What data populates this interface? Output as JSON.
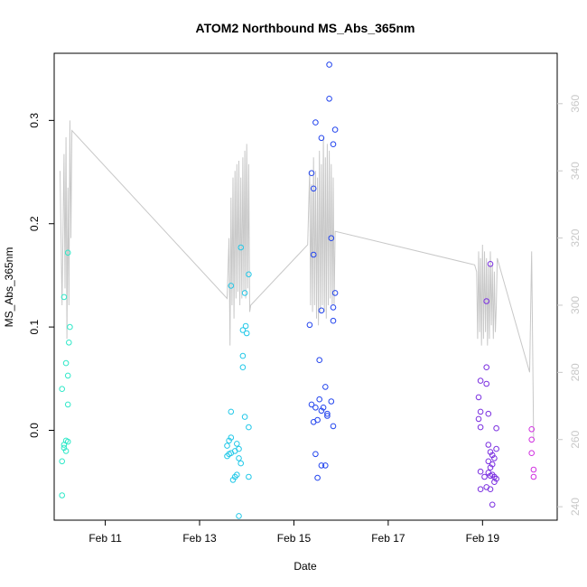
{
  "chart_data": {
    "type": "scatter",
    "title": "ATOM2 Northbound MS_Abs_365nm",
    "xlabel": "Date",
    "ylabel": "MS_Abs_365nm",
    "x_domain": [
      "2016-02-09T22:00",
      "2016-02-20T14:00"
    ],
    "ylim": [
      -0.087,
      0.365
    ],
    "y2lim": [
      236,
      375
    ],
    "x_ticks": [
      {
        "date": "2016-02-11",
        "label": "Feb 11"
      },
      {
        "date": "2016-02-13",
        "label": "Feb 13"
      },
      {
        "date": "2016-02-15",
        "label": "Feb 15"
      },
      {
        "date": "2016-02-17",
        "label": "Feb 17"
      },
      {
        "date": "2016-02-19",
        "label": "Feb 19"
      }
    ],
    "y_ticks": [
      {
        "value": 0.0,
        "label": "0.0"
      },
      {
        "value": 0.1,
        "label": "0.1"
      },
      {
        "value": 0.2,
        "label": "0.2"
      },
      {
        "value": 0.3,
        "label": "0.3"
      }
    ],
    "y2_ticks": [
      {
        "value": 240,
        "label": "240"
      },
      {
        "value": 260,
        "label": "260"
      },
      {
        "value": 280,
        "label": "280"
      },
      {
        "value": 300,
        "label": "300"
      },
      {
        "value": 320,
        "label": "320"
      },
      {
        "value": 340,
        "label": "340"
      },
      {
        "value": 360,
        "label": "360"
      }
    ],
    "colors": {
      "line": "#c8c8c8",
      "cluster1": "#2ee8c8",
      "cluster2": "#22c8e8",
      "cluster3": "#2244ee",
      "cluster4": "#7a2ee0",
      "cluster5": "#d030e0"
    },
    "points": [
      {
        "x": "2016-02-10T03:00",
        "y": 0.129,
        "color": "#2ee8c8"
      },
      {
        "x": "2016-02-10T05:00",
        "y": 0.172,
        "color": "#2ee8c8"
      },
      {
        "x": "2016-02-10T06:00",
        "y": 0.1,
        "color": "#2ee8c8"
      },
      {
        "x": "2016-02-10T05:30",
        "y": 0.085,
        "color": "#2ee8c8"
      },
      {
        "x": "2016-02-10T04:00",
        "y": 0.065,
        "color": "#2ee8c8"
      },
      {
        "x": "2016-02-10T05:00",
        "y": 0.053,
        "color": "#2ee8c8"
      },
      {
        "x": "2016-02-10T02:00",
        "y": 0.04,
        "color": "#2ee8c8"
      },
      {
        "x": "2016-02-10T05:00",
        "y": 0.025,
        "color": "#2ee8c8"
      },
      {
        "x": "2016-02-10T04:00",
        "y": -0.01,
        "color": "#2ee8c8"
      },
      {
        "x": "2016-02-10T05:00",
        "y": -0.011,
        "color": "#2ee8c8"
      },
      {
        "x": "2016-02-10T03:00",
        "y": -0.014,
        "color": "#2ee8c8"
      },
      {
        "x": "2016-02-10T03:00",
        "y": -0.017,
        "color": "#2ee8c8"
      },
      {
        "x": "2016-02-10T04:00",
        "y": -0.02,
        "color": "#2ee8c8"
      },
      {
        "x": "2016-02-10T02:00",
        "y": -0.03,
        "color": "#2ee8c8"
      },
      {
        "x": "2016-02-10T02:00",
        "y": -0.063,
        "color": "#2ee8c8"
      },
      {
        "x": "2016-02-13T16:00",
        "y": 0.14,
        "color": "#22c8e8"
      },
      {
        "x": "2016-02-13T21:00",
        "y": 0.177,
        "color": "#22c8e8"
      },
      {
        "x": "2016-02-14T01:00",
        "y": 0.151,
        "color": "#22c8e8"
      },
      {
        "x": "2016-02-13T23:00",
        "y": 0.133,
        "color": "#22c8e8"
      },
      {
        "x": "2016-02-13T23:30",
        "y": 0.101,
        "color": "#22c8e8"
      },
      {
        "x": "2016-02-13T22:00",
        "y": 0.097,
        "color": "#22c8e8"
      },
      {
        "x": "2016-02-14T00:00",
        "y": 0.094,
        "color": "#22c8e8"
      },
      {
        "x": "2016-02-13T22:00",
        "y": 0.072,
        "color": "#22c8e8"
      },
      {
        "x": "2016-02-13T22:00",
        "y": 0.061,
        "color": "#22c8e8"
      },
      {
        "x": "2016-02-13T16:00",
        "y": 0.018,
        "color": "#22c8e8"
      },
      {
        "x": "2016-02-13T23:00",
        "y": 0.013,
        "color": "#22c8e8"
      },
      {
        "x": "2016-02-14T01:00",
        "y": 0.003,
        "color": "#22c8e8"
      },
      {
        "x": "2016-02-13T16:00",
        "y": -0.007,
        "color": "#22c8e8"
      },
      {
        "x": "2016-02-13T15:00",
        "y": -0.01,
        "color": "#22c8e8"
      },
      {
        "x": "2016-02-13T14:00",
        "y": -0.015,
        "color": "#22c8e8"
      },
      {
        "x": "2016-02-13T19:00",
        "y": -0.013,
        "color": "#22c8e8"
      },
      {
        "x": "2016-02-13T20:00",
        "y": -0.018,
        "color": "#22c8e8"
      },
      {
        "x": "2016-02-13T18:00",
        "y": -0.02,
        "color": "#22c8e8"
      },
      {
        "x": "2016-02-13T16:00",
        "y": -0.022,
        "color": "#22c8e8"
      },
      {
        "x": "2016-02-13T14:00",
        "y": -0.025,
        "color": "#22c8e8"
      },
      {
        "x": "2016-02-13T15:00",
        "y": -0.023,
        "color": "#22c8e8"
      },
      {
        "x": "2016-02-13T20:00",
        "y": -0.027,
        "color": "#22c8e8"
      },
      {
        "x": "2016-02-13T21:00",
        "y": -0.032,
        "color": "#22c8e8"
      },
      {
        "x": "2016-02-13T19:00",
        "y": -0.043,
        "color": "#22c8e8"
      },
      {
        "x": "2016-02-13T18:00",
        "y": -0.045,
        "color": "#22c8e8"
      },
      {
        "x": "2016-02-14T01:00",
        "y": -0.045,
        "color": "#22c8e8"
      },
      {
        "x": "2016-02-13T17:00",
        "y": -0.048,
        "color": "#22c8e8"
      },
      {
        "x": "2016-02-13T20:00",
        "y": -0.083,
        "color": "#22c8e8"
      },
      {
        "x": "2016-02-15T18:00",
        "y": 0.354,
        "color": "#2244ee"
      },
      {
        "x": "2016-02-15T18:00",
        "y": 0.321,
        "color": "#2244ee"
      },
      {
        "x": "2016-02-15T11:00",
        "y": 0.298,
        "color": "#2244ee"
      },
      {
        "x": "2016-02-15T21:00",
        "y": 0.291,
        "color": "#2244ee"
      },
      {
        "x": "2016-02-15T14:00",
        "y": 0.283,
        "color": "#2244ee"
      },
      {
        "x": "2016-02-15T20:00",
        "y": 0.277,
        "color": "#2244ee"
      },
      {
        "x": "2016-02-15T09:00",
        "y": 0.249,
        "color": "#2244ee"
      },
      {
        "x": "2016-02-15T10:00",
        "y": 0.234,
        "color": "#2244ee"
      },
      {
        "x": "2016-02-15T19:00",
        "y": 0.186,
        "color": "#2244ee"
      },
      {
        "x": "2016-02-15T10:00",
        "y": 0.17,
        "color": "#2244ee"
      },
      {
        "x": "2016-02-15T21:00",
        "y": 0.133,
        "color": "#2244ee"
      },
      {
        "x": "2016-02-15T20:00",
        "y": 0.119,
        "color": "#2244ee"
      },
      {
        "x": "2016-02-15T14:00",
        "y": 0.116,
        "color": "#2244ee"
      },
      {
        "x": "2016-02-15T20:00",
        "y": 0.106,
        "color": "#2244ee"
      },
      {
        "x": "2016-02-15T08:00",
        "y": 0.102,
        "color": "#2244ee"
      },
      {
        "x": "2016-02-15T13:00",
        "y": 0.068,
        "color": "#2244ee"
      },
      {
        "x": "2016-02-15T16:00",
        "y": 0.042,
        "color": "#2244ee"
      },
      {
        "x": "2016-02-15T13:00",
        "y": 0.03,
        "color": "#2244ee"
      },
      {
        "x": "2016-02-15T19:00",
        "y": 0.028,
        "color": "#2244ee"
      },
      {
        "x": "2016-02-15T09:00",
        "y": 0.025,
        "color": "#2244ee"
      },
      {
        "x": "2016-02-15T11:00",
        "y": 0.022,
        "color": "#2244ee"
      },
      {
        "x": "2016-02-15T15:00",
        "y": 0.022,
        "color": "#2244ee"
      },
      {
        "x": "2016-02-15T14:00",
        "y": 0.019,
        "color": "#2244ee"
      },
      {
        "x": "2016-02-15T17:00",
        "y": 0.016,
        "color": "#2244ee"
      },
      {
        "x": "2016-02-15T17:00",
        "y": 0.014,
        "color": "#2244ee"
      },
      {
        "x": "2016-02-15T12:00",
        "y": 0.01,
        "color": "#2244ee"
      },
      {
        "x": "2016-02-15T10:00",
        "y": 0.008,
        "color": "#2244ee"
      },
      {
        "x": "2016-02-15T20:00",
        "y": 0.004,
        "color": "#2244ee"
      },
      {
        "x": "2016-02-15T11:00",
        "y": -0.023,
        "color": "#2244ee"
      },
      {
        "x": "2016-02-15T14:00",
        "y": -0.034,
        "color": "#2244ee"
      },
      {
        "x": "2016-02-15T16:00",
        "y": -0.034,
        "color": "#2244ee"
      },
      {
        "x": "2016-02-15T12:00",
        "y": -0.046,
        "color": "#2244ee"
      },
      {
        "x": "2016-02-19T04:00",
        "y": 0.161,
        "color": "#7a2ee0"
      },
      {
        "x": "2016-02-19T02:00",
        "y": 0.125,
        "color": "#7a2ee0"
      },
      {
        "x": "2016-02-19T02:00",
        "y": 0.061,
        "color": "#7a2ee0"
      },
      {
        "x": "2016-02-18T23:00",
        "y": 0.048,
        "color": "#7a2ee0"
      },
      {
        "x": "2016-02-19T02:00",
        "y": 0.045,
        "color": "#7a2ee0"
      },
      {
        "x": "2016-02-18T22:00",
        "y": 0.032,
        "color": "#7a2ee0"
      },
      {
        "x": "2016-02-18T23:00",
        "y": 0.018,
        "color": "#7a2ee0"
      },
      {
        "x": "2016-02-19T03:00",
        "y": 0.016,
        "color": "#7a2ee0"
      },
      {
        "x": "2016-02-18T22:00",
        "y": 0.011,
        "color": "#7a2ee0"
      },
      {
        "x": "2016-02-18T23:00",
        "y": 0.003,
        "color": "#7a2ee0"
      },
      {
        "x": "2016-02-19T07:00",
        "y": 0.002,
        "color": "#7a2ee0"
      },
      {
        "x": "2016-02-19T03:00",
        "y": -0.014,
        "color": "#7a2ee0"
      },
      {
        "x": "2016-02-19T07:00",
        "y": -0.018,
        "color": "#7a2ee0"
      },
      {
        "x": "2016-02-19T04:00",
        "y": -0.021,
        "color": "#7a2ee0"
      },
      {
        "x": "2016-02-19T05:00",
        "y": -0.024,
        "color": "#7a2ee0"
      },
      {
        "x": "2016-02-19T06:00",
        "y": -0.027,
        "color": "#7a2ee0"
      },
      {
        "x": "2016-02-19T03:00",
        "y": -0.03,
        "color": "#7a2ee0"
      },
      {
        "x": "2016-02-19T05:00",
        "y": -0.033,
        "color": "#7a2ee0"
      },
      {
        "x": "2016-02-19T04:00",
        "y": -0.036,
        "color": "#7a2ee0"
      },
      {
        "x": "2016-02-18T23:00",
        "y": -0.04,
        "color": "#7a2ee0"
      },
      {
        "x": "2016-02-19T03:00",
        "y": -0.041,
        "color": "#7a2ee0"
      },
      {
        "x": "2016-02-19T05:00",
        "y": -0.043,
        "color": "#7a2ee0"
      },
      {
        "x": "2016-02-19T04:00",
        "y": -0.044,
        "color": "#7a2ee0"
      },
      {
        "x": "2016-02-19T01:00",
        "y": -0.045,
        "color": "#7a2ee0"
      },
      {
        "x": "2016-02-19T06:00",
        "y": -0.045,
        "color": "#7a2ee0"
      },
      {
        "x": "2016-02-19T07:00",
        "y": -0.047,
        "color": "#7a2ee0"
      },
      {
        "x": "2016-02-19T06:00",
        "y": -0.05,
        "color": "#7a2ee0"
      },
      {
        "x": "2016-02-19T02:00",
        "y": -0.055,
        "color": "#7a2ee0"
      },
      {
        "x": "2016-02-18T23:00",
        "y": -0.057,
        "color": "#7a2ee0"
      },
      {
        "x": "2016-02-19T04:00",
        "y": -0.057,
        "color": "#7a2ee0"
      },
      {
        "x": "2016-02-19T05:00",
        "y": -0.072,
        "color": "#7a2ee0"
      },
      {
        "x": "2016-02-20T01:00",
        "y": 0.001,
        "color": "#d030e0"
      },
      {
        "x": "2016-02-20T01:00",
        "y": -0.009,
        "color": "#d030e0"
      },
      {
        "x": "2016-02-20T01:00",
        "y": -0.022,
        "color": "#d030e0"
      },
      {
        "x": "2016-02-20T02:00",
        "y": -0.038,
        "color": "#d030e0"
      },
      {
        "x": "2016-02-20T02:00",
        "y": -0.045,
        "color": "#d030e0"
      }
    ],
    "secondary_line": {
      "x": [
        "2016-02-10T01:00",
        "2016-02-10T02:00",
        "2016-02-10T03:00",
        "2016-02-10T03:30",
        "2016-02-10T04:00",
        "2016-02-10T04:30",
        "2016-02-10T05:00",
        "2016-02-10T05:30",
        "2016-02-10T06:00",
        "2016-02-10T06:30",
        "2016-02-10T07:00",
        "2016-02-13T14:00",
        "2016-02-13T15:00",
        "2016-02-13T15:30",
        "2016-02-13T16:00",
        "2016-02-13T16:30",
        "2016-02-13T17:00",
        "2016-02-13T17:30",
        "2016-02-13T18:00",
        "2016-02-13T18:30",
        "2016-02-13T19:00",
        "2016-02-13T19:30",
        "2016-02-13T20:00",
        "2016-02-13T20:30",
        "2016-02-13T21:00",
        "2016-02-13T21:30",
        "2016-02-13T22:00",
        "2016-02-13T22:30",
        "2016-02-13T23:00",
        "2016-02-13T23:30",
        "2016-02-14T00:00",
        "2016-02-14T00:30",
        "2016-02-14T01:00",
        "2016-02-14T01:30",
        "2016-02-14T02:00",
        "2016-02-15T07:00",
        "2016-02-15T08:00",
        "2016-02-15T08:30",
        "2016-02-15T09:00",
        "2016-02-15T09:30",
        "2016-02-15T10:00",
        "2016-02-15T10:30",
        "2016-02-15T11:00",
        "2016-02-15T11:30",
        "2016-02-15T12:00",
        "2016-02-15T12:30",
        "2016-02-15T13:00",
        "2016-02-15T13:30",
        "2016-02-15T14:00",
        "2016-02-15T14:30",
        "2016-02-15T15:00",
        "2016-02-15T15:30",
        "2016-02-15T16:00",
        "2016-02-15T16:30",
        "2016-02-15T17:00",
        "2016-02-15T17:30",
        "2016-02-15T18:00",
        "2016-02-15T18:30",
        "2016-02-15T19:00",
        "2016-02-15T19:30",
        "2016-02-15T20:00",
        "2016-02-15T20:30",
        "2016-02-15T21:00",
        "2016-02-18T20:00",
        "2016-02-18T21:00",
        "2016-02-18T21:30",
        "2016-02-18T22:00",
        "2016-02-18T22:30",
        "2016-02-18T23:00",
        "2016-02-18T23:30",
        "2016-02-19T00:00",
        "2016-02-19T00:30",
        "2016-02-19T01:00",
        "2016-02-19T01:30",
        "2016-02-19T02:00",
        "2016-02-19T02:30",
        "2016-02-19T03:00",
        "2016-02-19T03:30",
        "2016-02-19T04:00",
        "2016-02-19T04:30",
        "2016-02-19T05:00",
        "2016-02-19T05:30",
        "2016-02-19T06:00",
        "2016-02-19T06:30",
        "2016-02-19T07:00",
        "2016-02-19T07:30",
        "2016-02-20T00:00",
        "2016-02-20T01:00",
        "2016-02-20T02:00"
      ],
      "y": [
        340,
        300,
        345,
        305,
        350,
        290,
        335,
        300,
        355,
        320,
        352,
        302,
        320,
        288,
        332,
        300,
        338,
        296,
        340,
        302,
        342,
        304,
        343,
        300,
        338,
        302,
        344,
        304,
        346,
        302,
        348,
        305,
        342,
        298,
        300,
        318,
        340,
        300,
        336,
        298,
        344,
        300,
        340,
        296,
        338,
        294,
        346,
        298,
        342,
        300,
        350,
        298,
        344,
        296,
        348,
        300,
        346,
        302,
        342,
        300,
        338,
        300,
        322,
        312,
        310,
        290,
        316,
        292,
        314,
        288,
        318,
        290,
        316,
        292,
        314,
        288,
        312,
        290,
        316,
        294,
        312,
        290,
        310,
        292,
        300,
        314,
        280,
        316,
        260
      ]
    }
  }
}
